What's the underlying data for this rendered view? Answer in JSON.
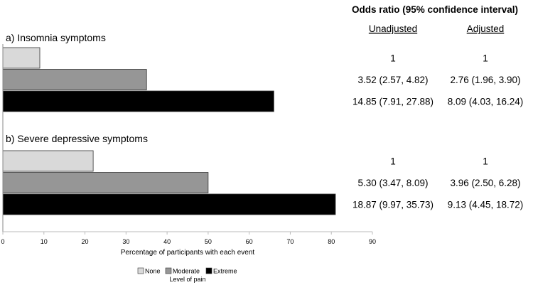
{
  "chart_data": {
    "type": "bar",
    "orientation": "horizontal",
    "header": "Odds ratio (95% confidence interval)",
    "or_columns": [
      "Unadjusted",
      "Adjusted"
    ],
    "xlabel": "Percentage of participants with each event",
    "xlim": [
      0,
      90
    ],
    "xticks": [
      0,
      10,
      20,
      30,
      40,
      50,
      60,
      70,
      80,
      90
    ],
    "legend_title": "Level of pain",
    "legend_position": "bottom-center",
    "series": [
      {
        "name": "None",
        "color": "#d9d9d9"
      },
      {
        "name": "Moderate",
        "color": "#969696"
      },
      {
        "name": "Extreme",
        "color": "#000000"
      }
    ],
    "groups": [
      {
        "title": "a) Insomnia symptoms",
        "values": [
          9,
          35,
          66
        ],
        "unadjusted": [
          "1",
          "3.52 (2.57, 4.82)",
          "14.85 (7.91, 27.88)"
        ],
        "adjusted": [
          "1",
          "2.76 (1.96, 3.90)",
          "8.09 (4.03, 16.24)"
        ]
      },
      {
        "title": "b) Severe depressive symptoms",
        "values": [
          22,
          50,
          81
        ],
        "unadjusted": [
          "1",
          "5.30 (3.47, 8.09)",
          "18.87 (9.97, 35.73)"
        ],
        "adjusted": [
          "1",
          "3.96 (2.50, 6.28)",
          "9.13 (4.45, 18.72)"
        ]
      }
    ]
  }
}
